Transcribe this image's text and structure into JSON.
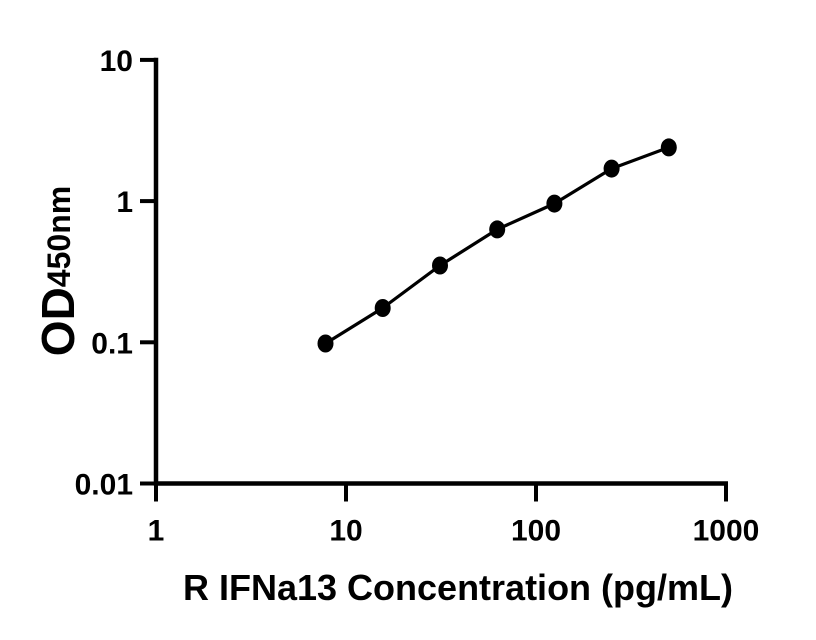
{
  "figure": {
    "background_color": "#ffffff",
    "ink_color": "#000000"
  },
  "chart_data": {
    "type": "scatter",
    "subtype": "ELISA standard curve, points connected by line, log-log axes",
    "title": "",
    "xlabel": "R IFNa13 Concentration (pg/mL)",
    "ylabel_main": "OD",
    "ylabel_sub": "450nm",
    "x": [
      7.8,
      15.6,
      31.25,
      62.5,
      125,
      250,
      500
    ],
    "y": [
      0.098,
      0.175,
      0.35,
      0.63,
      0.96,
      1.7,
      2.4
    ],
    "x_scale": "log10",
    "y_scale": "log10",
    "xlim": [
      1,
      1000
    ],
    "ylim": [
      0.01,
      10
    ],
    "x_ticks": [
      1,
      10,
      100,
      1000
    ],
    "x_tick_labels": [
      "1",
      "10",
      "100",
      "1000"
    ],
    "y_ticks": [
      0.01,
      0.1,
      1,
      10
    ],
    "y_tick_labels": [
      "0.01",
      "0.1",
      "1",
      "10"
    ],
    "grid": false,
    "legend": null,
    "marker": {
      "shape": "ellipse",
      "fill": "#000000",
      "rx": 8,
      "ry": 9
    },
    "line": {
      "color": "#000000",
      "width": 3.25
    },
    "axis": {
      "color": "#000000",
      "width": 4.5,
      "tick_width": 4,
      "tick_length": 16
    }
  }
}
